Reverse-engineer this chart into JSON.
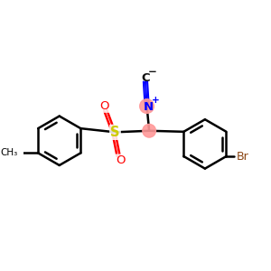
{
  "bg_color": "#ffffff",
  "bond_color": "#000000",
  "bond_lw": 1.8,
  "S_color": "#cccc00",
  "O_color": "#ff0000",
  "N_color": "#0000ff",
  "Br_color": "#8B4513",
  "highlight_color": "#ff9999",
  "C_color": "#111111",
  "figsize": [
    3.0,
    3.0
  ],
  "dpi": 100,
  "xlim": [
    -2.6,
    2.6
  ],
  "ylim": [
    -2.2,
    1.8
  ]
}
